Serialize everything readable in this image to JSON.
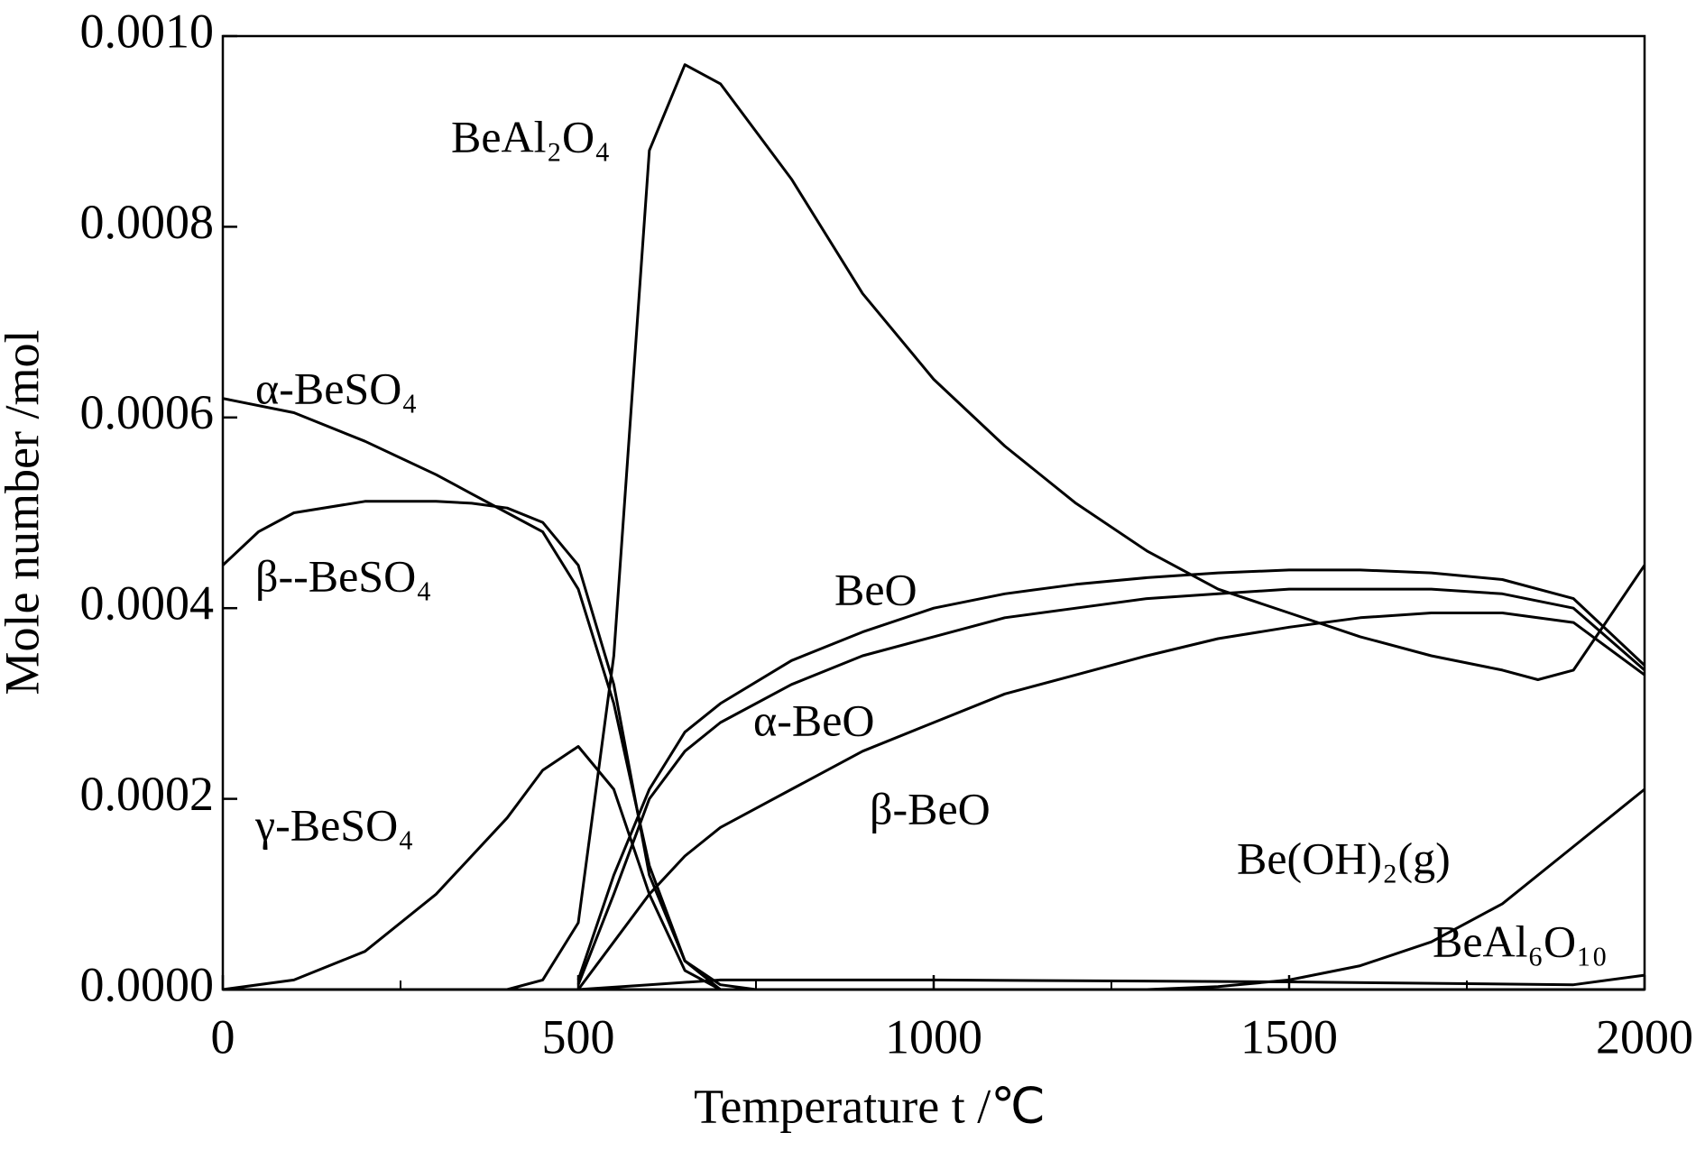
{
  "chart_data": {
    "type": "line",
    "xlabel": "Temperature t /℃",
    "ylabel": "Mole number /mol",
    "xlim": [
      0,
      2000
    ],
    "ylim": [
      0,
      0.001
    ],
    "xticks": [
      0,
      500,
      1000,
      1500,
      2000
    ],
    "xminorticks": [
      250,
      750,
      1250,
      1750
    ],
    "yticks": [
      {
        "value": 0,
        "label": "0.0000"
      },
      {
        "value": 0.0002,
        "label": "0.0002"
      },
      {
        "value": 0.0004,
        "label": "0.0004"
      },
      {
        "value": 0.0006,
        "label": "0.0006"
      },
      {
        "value": 0.0008,
        "label": "0.0008"
      },
      {
        "value": 0.001,
        "label": "0.0010"
      }
    ],
    "grid": false,
    "series": [
      {
        "name": "α-BeSO₄",
        "color": "#000000",
        "x": [
          0,
          100,
          200,
          300,
          350,
          400,
          450,
          500,
          550,
          600,
          650,
          700,
          750,
          2000
        ],
        "values": [
          0.00062,
          0.000605,
          0.000575,
          0.00054,
          0.00052,
          0.0005,
          0.00048,
          0.00042,
          0.0003,
          0.00013,
          3e-05,
          5e-06,
          0,
          0
        ]
      },
      {
        "name": "β--BeSO₄",
        "color": "#000000",
        "x": [
          0,
          50,
          100,
          200,
          300,
          350,
          400,
          450,
          500,
          550,
          600,
          650,
          700,
          2000
        ],
        "values": [
          0.000445,
          0.00048,
          0.0005,
          0.000512,
          0.000512,
          0.00051,
          0.000505,
          0.00049,
          0.000445,
          0.00032,
          0.00012,
          3e-05,
          0,
          0
        ]
      },
      {
        "name": "γ-BeSO₄",
        "color": "#000000",
        "x": [
          0,
          100,
          200,
          300,
          400,
          450,
          500,
          550,
          600,
          650,
          700,
          2000
        ],
        "values": [
          0,
          1e-05,
          4e-05,
          0.0001,
          0.00018,
          0.00023,
          0.000255,
          0.00021,
          0.0001,
          2e-05,
          0,
          0
        ]
      },
      {
        "name": "BeAl₂O₄",
        "color": "#000000",
        "x": [
          0,
          400,
          450,
          500,
          550,
          600,
          650,
          700,
          800,
          900,
          1000,
          1100,
          1200,
          1300,
          1400,
          1500,
          1600,
          1700,
          1800,
          1850,
          1900,
          2000
        ],
        "values": [
          0,
          0,
          1e-05,
          7e-05,
          0.00035,
          0.00088,
          0.00097,
          0.00095,
          0.00085,
          0.00073,
          0.00064,
          0.00057,
          0.00051,
          0.00046,
          0.00042,
          0.000395,
          0.00037,
          0.00035,
          0.000335,
          0.000325,
          0.000335,
          0.000445
        ]
      },
      {
        "name": "BeO",
        "color": "#000000",
        "x": [
          500,
          550,
          600,
          650,
          700,
          800,
          900,
          1000,
          1100,
          1200,
          1300,
          1400,
          1500,
          1600,
          1700,
          1800,
          1900,
          2000
        ],
        "values": [
          1e-05,
          0.00012,
          0.00021,
          0.00027,
          0.0003,
          0.000345,
          0.000375,
          0.0004,
          0.000415,
          0.000425,
          0.000432,
          0.000437,
          0.00044,
          0.00044,
          0.000437,
          0.00043,
          0.00041,
          0.00034
        ]
      },
      {
        "name": "α-BeO",
        "color": "#000000",
        "x": [
          500,
          550,
          600,
          650,
          700,
          800,
          900,
          1000,
          1100,
          1200,
          1300,
          1400,
          1500,
          1600,
          1700,
          1800,
          1900,
          2000
        ],
        "values": [
          5e-06,
          0.0001,
          0.0002,
          0.00025,
          0.00028,
          0.00032,
          0.00035,
          0.00037,
          0.00039,
          0.0004,
          0.00041,
          0.000415,
          0.00042,
          0.00042,
          0.00042,
          0.000415,
          0.0004,
          0.000335
        ]
      },
      {
        "name": "β-BeO",
        "color": "#000000",
        "x": [
          500,
          550,
          600,
          650,
          700,
          800,
          900,
          1000,
          1100,
          1200,
          1300,
          1400,
          1500,
          1600,
          1700,
          1800,
          1900,
          2000
        ],
        "values": [
          0,
          5e-05,
          0.0001,
          0.00014,
          0.00017,
          0.00021,
          0.00025,
          0.00028,
          0.00031,
          0.00033,
          0.00035,
          0.000368,
          0.00038,
          0.00039,
          0.000395,
          0.000395,
          0.000385,
          0.00033
        ]
      },
      {
        "name": "Be(OH)₂(g)",
        "color": "#000000",
        "x": [
          0,
          1300,
          1400,
          1500,
          1600,
          1700,
          1800,
          1900,
          2000
        ],
        "values": [
          0,
          0,
          3e-06,
          1e-05,
          2.5e-05,
          5e-05,
          9e-05,
          0.00015,
          0.00021
        ]
      },
      {
        "name": "BeAl₆O₁₀",
        "color": "#000000",
        "x": [
          0,
          500,
          600,
          700,
          1000,
          1500,
          1900,
          2000
        ],
        "values": [
          0,
          0,
          5e-06,
          1e-05,
          1e-05,
          8e-06,
          5e-06,
          1.5e-05
        ]
      }
    ]
  }
}
